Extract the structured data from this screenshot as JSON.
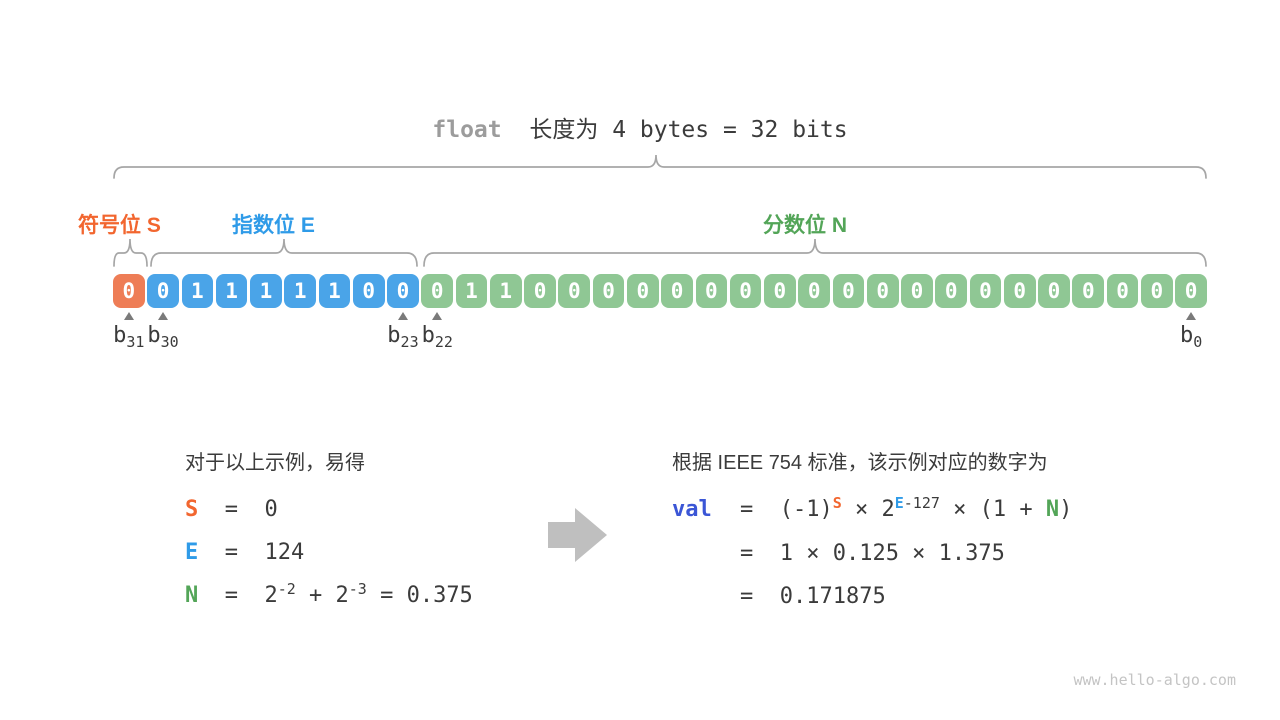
{
  "title": {
    "parts": [
      {
        "t": "float",
        "s": "kw"
      },
      {
        "t": "  ",
        "s": "mono"
      },
      {
        "t": "长度为",
        "s": "cn"
      },
      {
        "t": " 4 bytes = 32 bits",
        "s": "mono"
      }
    ]
  },
  "section_labels": {
    "sign": "符号位 S",
    "exponent": "指数位 E",
    "fraction": "分数位 N"
  },
  "bit_row": {
    "segments": [
      {
        "name": "sign",
        "color": "#ee7d56",
        "bits": [
          "0"
        ]
      },
      {
        "name": "exponent",
        "color": "#4aa4e8",
        "bits": [
          "0",
          "1",
          "1",
          "1",
          "1",
          "1",
          "0",
          "0"
        ]
      },
      {
        "name": "fraction",
        "color": "#8fc794",
        "bits": [
          "0",
          "1",
          "1",
          "0",
          "0",
          "0",
          "0",
          "0",
          "0",
          "0",
          "0",
          "0",
          "0",
          "0",
          "0",
          "0",
          "0",
          "0",
          "0",
          "0",
          "0",
          "0",
          "0"
        ]
      }
    ]
  },
  "bit_markers": {
    "base": "b",
    "items": [
      {
        "sub": "31",
        "cell": 0
      },
      {
        "sub": "30",
        "cell": 1
      },
      {
        "sub": "23",
        "cell": 8
      },
      {
        "sub": "22",
        "cell": 9
      },
      {
        "sub": "0",
        "cell": 31
      }
    ]
  },
  "left_block": {
    "intro": "对于以上示例，易得",
    "lines": [
      {
        "parts": [
          {
            "t": "S",
            "s": "s"
          },
          {
            "t": "  =  0"
          }
        ]
      },
      {
        "parts": [
          {
            "t": "E",
            "s": "e"
          },
          {
            "t": "  =  124"
          }
        ]
      },
      {
        "parts": [
          {
            "t": "N",
            "s": "n"
          },
          {
            "t": "  =  2"
          },
          {
            "t": "-2",
            "s": "sup"
          },
          {
            "t": " + 2"
          },
          {
            "t": "-3",
            "s": "sup"
          },
          {
            "t": " = 0.375"
          }
        ]
      }
    ]
  },
  "right_block": {
    "intro": "根据 IEEE 754 标准，该示例对应的数字为",
    "lines": [
      {
        "prefix": [
          {
            "t": "val",
            "s": "val"
          }
        ],
        "parts": [
          {
            "t": "=  (-1)"
          },
          {
            "t": "S",
            "s": "sup-s"
          },
          {
            "t": " × 2"
          },
          {
            "t": "E",
            "s": "sup-e"
          },
          {
            "t": "-127",
            "s": "sup"
          },
          {
            "t": " × (1 + "
          },
          {
            "t": "N",
            "s": "n"
          },
          {
            "t": ")"
          }
        ]
      },
      {
        "prefix": [],
        "parts": [
          {
            "t": "=  1 × 0.125 × 1.375"
          }
        ]
      },
      {
        "prefix": [],
        "parts": [
          {
            "t": "=  0.171875"
          }
        ]
      }
    ]
  },
  "watermark": "www.hello-algo.com",
  "colors": {
    "sign_label": "#f2662f",
    "exponent_label": "#2f9be8",
    "fraction_label": "#53a558",
    "val_text": "#3b56d6",
    "cell_sign": "#ee7d56",
    "cell_exponent": "#4aa4e8",
    "cell_fraction": "#8fc794",
    "dark_text": "#3b3b3b",
    "muted_gray": "#9c9c9c",
    "brace_gray": "#a6a6a6",
    "arrow_gray": "#bfbfbf"
  }
}
